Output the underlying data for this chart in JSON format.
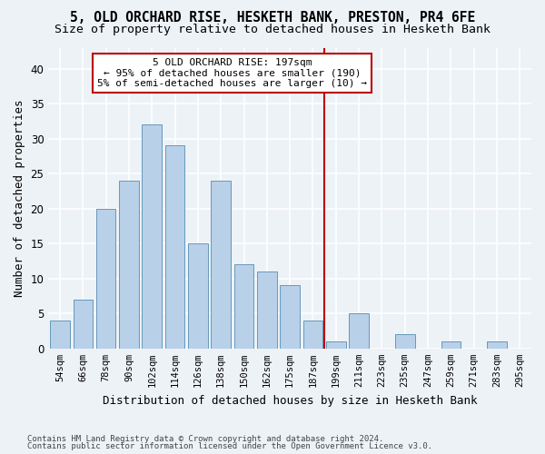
{
  "title": "5, OLD ORCHARD RISE, HESKETH BANK, PRESTON, PR4 6FE",
  "subtitle": "Size of property relative to detached houses in Hesketh Bank",
  "xlabel": "Distribution of detached houses by size in Hesketh Bank",
  "ylabel": "Number of detached properties",
  "bin_labels": [
    "54sqm",
    "66sqm",
    "78sqm",
    "90sqm",
    "102sqm",
    "114sqm",
    "126sqm",
    "138sqm",
    "150sqm",
    "162sqm",
    "175sqm",
    "187sqm",
    "199sqm",
    "211sqm",
    "223sqm",
    "235sqm",
    "247sqm",
    "259sqm",
    "271sqm",
    "283sqm",
    "295sqm"
  ],
  "bar_values": [
    4,
    7,
    20,
    24,
    32,
    29,
    15,
    24,
    12,
    11,
    9,
    4,
    1,
    5,
    0,
    2,
    0,
    1,
    0,
    1,
    0
  ],
  "bar_color": "#b8d0e8",
  "bar_edgecolor": "#6699bb",
  "marker_label_line1": "5 OLD ORCHARD RISE: 197sqm",
  "marker_label_line2": "← 95% of detached houses are smaller (190)",
  "marker_label_line3": "5% of semi-detached houses are larger (10) →",
  "vline_color": "#bb0000",
  "box_edgecolor": "#bb0000",
  "vline_pos": 11.5,
  "ylim": [
    0,
    43
  ],
  "yticks": [
    0,
    5,
    10,
    15,
    20,
    25,
    30,
    35,
    40
  ],
  "bg_color": "#edf2f7",
  "grid_color": "#ffffff",
  "footnote1": "Contains HM Land Registry data © Crown copyright and database right 2024.",
  "footnote2": "Contains public sector information licensed under the Open Government Licence v3.0.",
  "title_fontsize": 10.5,
  "subtitle_fontsize": 9.5,
  "axis_label_fontsize": 9,
  "tick_fontsize": 7.5,
  "annotation_fontsize": 8,
  "footnote_fontsize": 6.5
}
